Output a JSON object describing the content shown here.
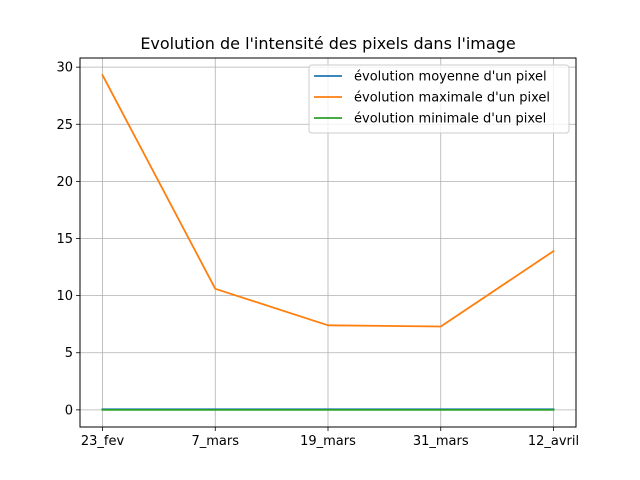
{
  "chart_data": {
    "type": "line",
    "title": "Evolution de l'intensité des pixels dans l'image",
    "xlabel": "",
    "ylabel": "",
    "categories": [
      "23_fev",
      "7_mars",
      "19_mars",
      "31_mars",
      "12_avril"
    ],
    "y_ticks": [
      "0",
      "5",
      "10",
      "15",
      "20",
      "25",
      "30"
    ],
    "ylim": [
      -1.5,
      30.8
    ],
    "grid": true,
    "legend_position": "upper right",
    "series": [
      {
        "name": "évolution moyenne d'un pixel",
        "color": "#1f77b4",
        "values": [
          0.05,
          0.05,
          0.05,
          0.05,
          0.05
        ]
      },
      {
        "name": "évolution maximale d'un pixel",
        "color": "#ff7f0e",
        "values": [
          29.3,
          10.6,
          7.4,
          7.3,
          13.9
        ]
      },
      {
        "name": "évolution minimale d'un pixel",
        "color": "#2ca02c",
        "values": [
          0.0,
          0.0,
          0.0,
          0.0,
          0.0
        ]
      }
    ]
  }
}
